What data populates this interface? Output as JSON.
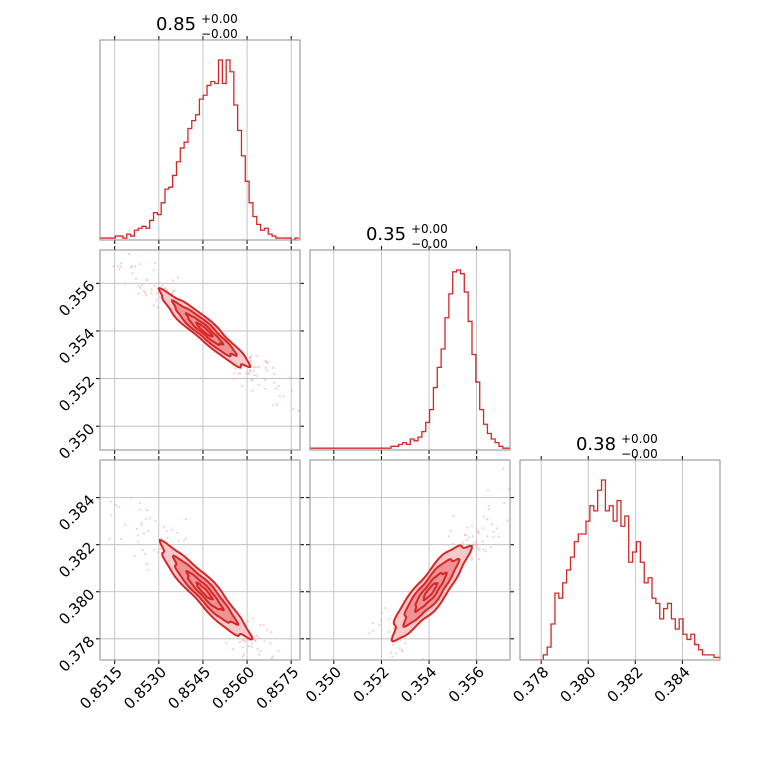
{
  "figure": {
    "color": "#d62728",
    "point_color": "#f0a6a8",
    "fill_light": "#f6c9ca",
    "fill_mid": "#ec8688"
  },
  "chart_data": {
    "type": "corner",
    "titles": [
      {
        "value": "0.85",
        "plus": "+0.00",
        "minus": "−0.00"
      },
      {
        "value": "0.35",
        "plus": "+0.00",
        "minus": "−0.00"
      },
      {
        "value": "0.38",
        "plus": "+0.00",
        "minus": "−0.00"
      }
    ],
    "params": [
      {
        "range": [
          0.851,
          0.8578
        ],
        "ticks": [
          0.8515,
          0.853,
          0.8545,
          0.856,
          0.8575
        ],
        "tick_labels": [
          "0.8515",
          "0.8530",
          "0.8545",
          "0.8560",
          "0.8575"
        ]
      },
      {
        "range": [
          0.349,
          0.3574
        ],
        "ticks": [
          0.35,
          0.352,
          0.354,
          0.356
        ],
        "tick_labels": [
          "0.350",
          "0.352",
          "0.354",
          "0.356"
        ]
      },
      {
        "range": [
          0.3771,
          0.3856
        ],
        "ticks": [
          0.378,
          0.38,
          0.382,
          0.384
        ],
        "tick_labels": [
          "0.378",
          "0.380",
          "0.382",
          "0.384"
        ]
      }
    ],
    "hist": [
      {
        "bin_start": 0.851,
        "bin_width": 0.00013,
        "counts": [
          1,
          1,
          1,
          1,
          2,
          2,
          1,
          3,
          2,
          5,
          6,
          7,
          6,
          10,
          14,
          13,
          19,
          26,
          27,
          33,
          40,
          47,
          50,
          57,
          61,
          64,
          72,
          74,
          79,
          81,
          80,
          92,
          80,
          92,
          86,
          69,
          56,
          43,
          30,
          19,
          12,
          8,
          5,
          6,
          3,
          2,
          1,
          1,
          1,
          1,
          0,
          1
        ]
      },
      {
        "bin_start": 0.349,
        "bin_width": 0.000162,
        "counts": [
          1,
          1,
          1,
          1,
          1,
          1,
          1,
          1,
          1,
          1,
          1,
          1,
          1,
          1,
          1,
          1,
          1,
          1,
          1,
          1,
          1,
          2,
          2,
          3,
          4,
          3,
          6,
          5,
          7,
          10,
          15,
          22,
          34,
          45,
          55,
          72,
          85,
          97,
          98,
          96,
          86,
          70,
          52,
          37,
          22,
          14,
          9,
          6,
          4,
          2,
          1,
          1
        ]
      },
      {
        "bin_start": 0.3771,
        "bin_width": 0.000165,
        "counts": [
          0,
          0,
          0,
          0,
          0,
          0,
          2,
          5,
          14,
          26,
          24,
          30,
          35,
          40,
          46,
          49,
          49,
          54,
          60,
          58,
          66,
          70,
          58,
          60,
          54,
          62,
          52,
          56,
          38,
          42,
          46,
          38,
          30,
          32,
          24,
          22,
          16,
          20,
          22,
          16,
          12,
          16,
          10,
          8,
          10,
          6,
          4,
          2,
          2,
          2,
          1,
          1
        ]
      }
    ],
    "pairs": [
      {
        "row": 1,
        "col": 0,
        "mean": [
          0.85455,
          0.35405
        ],
        "sd": [
          0.00075,
          0.0008
        ],
        "rho": -0.94
      },
      {
        "row": 2,
        "col": 0,
        "mean": [
          0.85455,
          0.38002
        ],
        "sd": [
          0.00075,
          0.001
        ],
        "rho": -0.93
      },
      {
        "row": 2,
        "col": 1,
        "mean": [
          0.35405,
          0.38002
        ],
        "sd": [
          0.0008,
          0.001
        ],
        "rho": 0.88
      }
    ]
  }
}
